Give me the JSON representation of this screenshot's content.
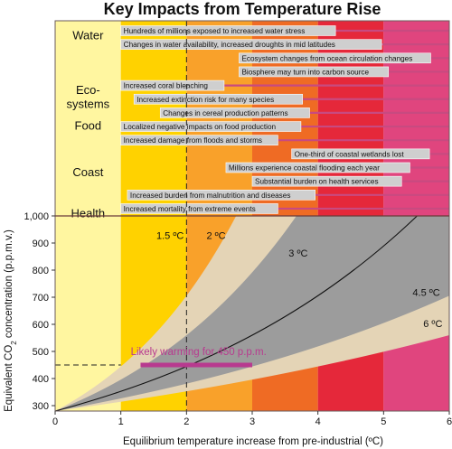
{
  "chart_data": {
    "type": "line",
    "title": "Key Impacts from Temperature Rise",
    "xlabel": "Equilibrium temperature increase from pre-industrial (ºC)",
    "ylabel_main": "Equivalent CO",
    "ylabel_sub": "2",
    "ylabel_rest": " concentration (p.p.m.v.)",
    "xlim": [
      0,
      6
    ],
    "ylim": [
      280,
      1000
    ],
    "x_ticks": [
      "0",
      "1",
      "2",
      "3",
      "4",
      "5",
      "6"
    ],
    "y_ticks": [
      {
        "label": "300",
        "v": 300
      },
      {
        "label": "400",
        "v": 400
      },
      {
        "label": "500",
        "v": 500
      },
      {
        "label": "600",
        "v": 600
      },
      {
        "label": "700",
        "v": 700
      },
      {
        "label": "800",
        "v": 800
      },
      {
        "label": "900",
        "v": 900
      },
      {
        "label": "1,000",
        "v": 1000
      }
    ],
    "temperature_bands": [
      {
        "from": 0,
        "to": 1,
        "color": "#fff6a0"
      },
      {
        "from": 1,
        "to": 2,
        "color": "#ffd200"
      },
      {
        "from": 2,
        "to": 3,
        "color": "#f9a12a"
      },
      {
        "from": 3,
        "to": 4,
        "color": "#ef6b24"
      },
      {
        "from": 4,
        "to": 5,
        "color": "#e5283a"
      },
      {
        "from": 5,
        "to": 6,
        "color": "#e0457e"
      }
    ],
    "climate_sensitivity_curves": [
      {
        "label": "1.5 ºC",
        "sensitivity": 1.5
      },
      {
        "label": "2 ºC",
        "sensitivity": 2
      },
      {
        "label": "3 ºC",
        "sensitivity": 3
      },
      {
        "label": "4.5 ºC",
        "sensitivity": 4.5
      },
      {
        "label": "6 ºC",
        "sensitivity": 6
      }
    ],
    "uncertainty_colors": {
      "outer_band": "#e4d4b6",
      "inner_band": "#9c9c9c",
      "central_line": "#111111"
    },
    "annotation": {
      "text": "Likely warming for 450 p.p.m.",
      "concentration": 450,
      "range": [
        1.3,
        3.0
      ],
      "color": "#b83a8f"
    },
    "reference_lines": {
      "x": 2,
      "y": 450
    },
    "impact_categories": [
      {
        "label": "Water",
        "row": 0.4
      },
      {
        "label": "Eco-",
        "row": 4.4
      },
      {
        "label": "systems",
        "row": 5.4
      },
      {
        "label": "Food",
        "row": 7.0
      },
      {
        "label": "Coast",
        "row": 10.4
      },
      {
        "label": "Health",
        "row": 13.4
      }
    ],
    "impacts": [
      {
        "text": "Hundreds of millions exposed to increased water stress",
        "start": 1.0,
        "row": 0
      },
      {
        "text": "Changes in water availability, increased droughts in mid latitudes",
        "start": 1.0,
        "row": 1
      },
      {
        "text": "Ecosystem changes from ocean circulation changes",
        "start": 2.8,
        "row": 2
      },
      {
        "text": "Biosphere may turn into carbon source",
        "start": 2.8,
        "row": 3
      },
      {
        "text": "Increased coral bleaching",
        "start": 1.0,
        "row": 4
      },
      {
        "text": "Increased extinction risk for many species",
        "start": 1.2,
        "row": 5
      },
      {
        "text": "Changes in cereal production patterns",
        "start": 1.6,
        "row": 6
      },
      {
        "text": "Localized negative impacts on food production",
        "start": 1.0,
        "row": 7
      },
      {
        "text": "Increased damage from floods and storms",
        "start": 1.0,
        "row": 8
      },
      {
        "text": "One-third of coastal wetlands lost",
        "start": 3.6,
        "row": 9
      },
      {
        "text": "Millions experience coastal flooding each year",
        "start": 2.6,
        "row": 10
      },
      {
        "text": "Substantial burden on health services",
        "start": 3.0,
        "row": 11
      },
      {
        "text": "Increased burden from malnutrition and diseases",
        "start": 1.1,
        "row": 12
      },
      {
        "text": "Increased mortality from extreme events",
        "start": 1.0,
        "row": 13
      }
    ],
    "impact_bar_color": "#cfcfcf",
    "impact_line_color": "#c84a80"
  }
}
